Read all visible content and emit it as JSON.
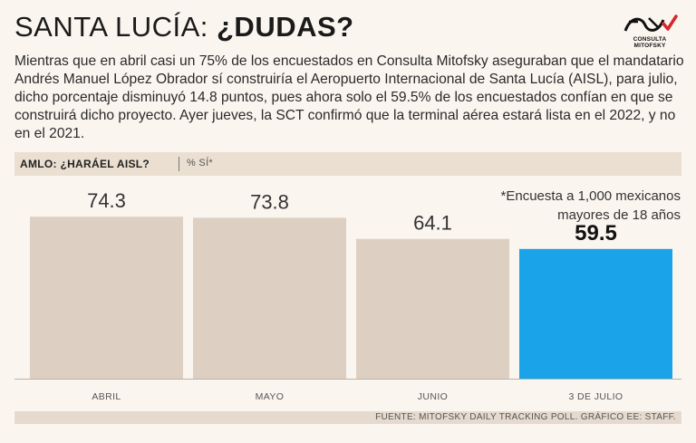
{
  "header": {
    "title_light": "SANTA LUCÍA: ",
    "title_bold": "¿DUDAS?",
    "logo_text": "CONSULTA MITOFSKY"
  },
  "intro": "Mientras que en abril casi un 75% de los encuestados en Consulta Mitofsky aseguraban que el mandatario Andrés Manuel López Obrador sí construiría el Aeropuerto Internacional de Santa Lucía (AISL), para julio, dicho porcentaje disminuyó 14.8 puntos, pues ahora solo el 59.5% de los encuestados confían en que se construirá dicho proyecto. Ayer jueves, la SCT confirmó que la terminal aérea estará lista en el 2022, y no en el 2021.",
  "subhead": {
    "question": "AMLO: ¿HARÁEL AISL?",
    "unit": "% SÍ*"
  },
  "note": {
    "line1": "*Encuesta a 1,000 mexicanos",
    "line2": "mayores de 18 años"
  },
  "footer": {
    "source": "FUENTE: MITOFSKY DAILY TRACKING POLL. GRÁFICO EE: STAFF."
  },
  "colors": {
    "bar": "#ddd0c2",
    "highlight": "#1aa3e8",
    "baseline": "#bdb3a8"
  },
  "chart_data": {
    "type": "bar",
    "title": "AMLO: ¿HARÁEL AISL?",
    "ylabel": "% SÍ*",
    "xlabel": "",
    "categories": [
      "ABRIL",
      "MAYO",
      "JUNIO",
      "3 DE JULIO"
    ],
    "values": [
      74.3,
      73.8,
      64.1,
      59.5
    ],
    "value_labels": [
      "74.3",
      "73.8",
      "64.1",
      "59.5"
    ],
    "highlight_index": 3,
    "ylim": [
      0,
      100
    ]
  }
}
